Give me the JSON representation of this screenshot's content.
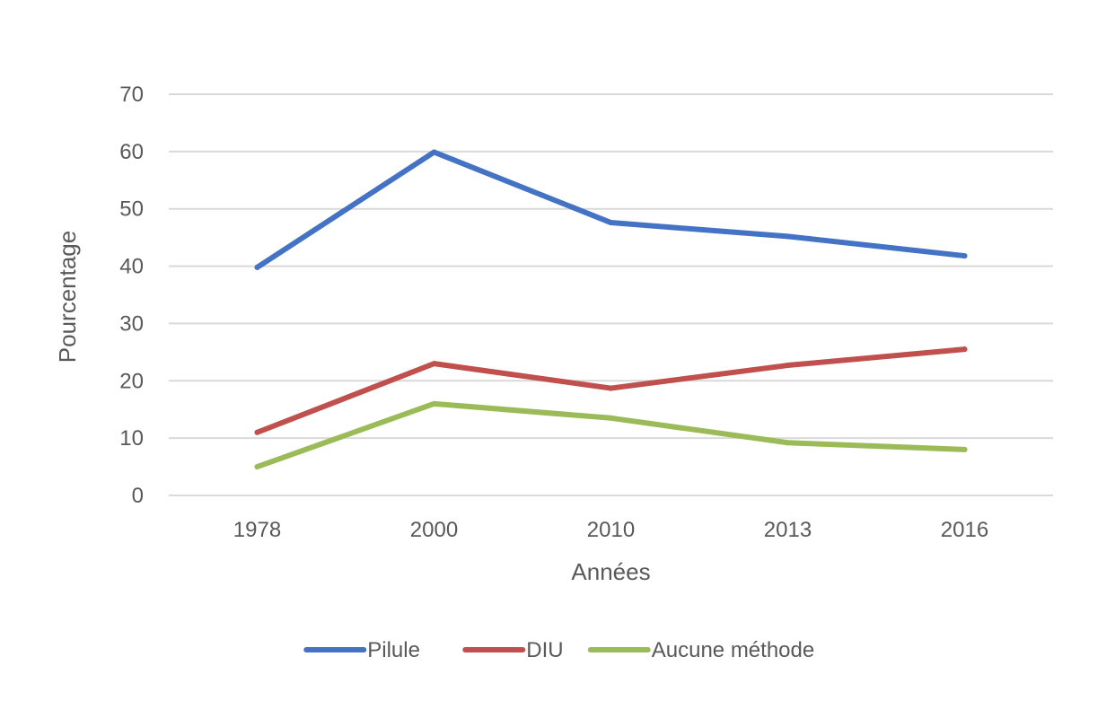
{
  "chart_data": {
    "type": "line",
    "title": "",
    "xlabel": "Années",
    "ylabel": "Pourcentage",
    "categories": [
      "1978",
      "2000",
      "2010",
      "2013",
      "2016"
    ],
    "ylim": [
      0,
      70
    ],
    "yticks": [
      0,
      10,
      20,
      30,
      40,
      50,
      60,
      70
    ],
    "grid": true,
    "legend_position": "bottom",
    "series": [
      {
        "name": "Pilule",
        "color": "#4472C4",
        "values": [
          39.8,
          59.9,
          47.6,
          45.2,
          41.8
        ]
      },
      {
        "name": "DIU",
        "color": "#C0504D",
        "values": [
          11.0,
          23.0,
          18.7,
          22.7,
          25.5
        ]
      },
      {
        "name": "Aucune méthode",
        "color": "#9BBB59",
        "values": [
          5.0,
          16.0,
          13.5,
          9.2,
          8.0
        ]
      }
    ]
  },
  "colors": {
    "gridline": "#D9D9D9",
    "text": "#595959"
  }
}
